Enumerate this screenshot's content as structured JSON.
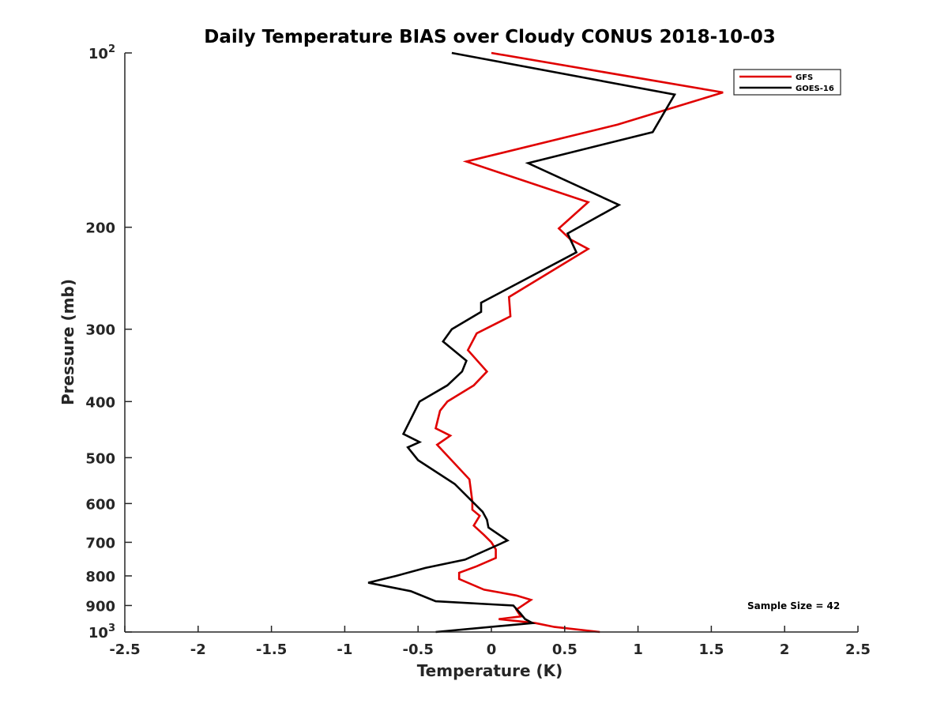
{
  "chart_data": {
    "type": "line",
    "title": "Daily Temperature BIAS over Cloudy CONUS 2018-10-03",
    "xlabel": "Temperature (K)",
    "ylabel": "Pressure (mb)",
    "xlim": [
      -2.5,
      2.5
    ],
    "ylim": [
      100,
      1000
    ],
    "y_scale": "log",
    "y_reversed": true,
    "x_ticks": [
      "-2.5",
      "-2",
      "-1.5",
      "-1",
      "-0.5",
      "0",
      "0.5",
      "1",
      "1.5",
      "2",
      "2.5"
    ],
    "y_ticks": [
      {
        "value": 100,
        "label": "10",
        "sup": "2"
      },
      {
        "value": 200,
        "label": "200",
        "sup": ""
      },
      {
        "value": 300,
        "label": "300",
        "sup": ""
      },
      {
        "value": 400,
        "label": "400",
        "sup": ""
      },
      {
        "value": 500,
        "label": "500",
        "sup": ""
      },
      {
        "value": 600,
        "label": "600",
        "sup": ""
      },
      {
        "value": 700,
        "label": "700",
        "sup": ""
      },
      {
        "value": 800,
        "label": "800",
        "sup": ""
      },
      {
        "value": 900,
        "label": "900",
        "sup": ""
      },
      {
        "value": 1000,
        "label": "10",
        "sup": "3"
      }
    ],
    "grid": false,
    "legend_position": "top-right",
    "annotation": "Sample Size = 42",
    "series": [
      {
        "name": "GFS",
        "color": "#e00000",
        "points": [
          [
            0.74,
            1000
          ],
          [
            0.43,
            980
          ],
          [
            0.3,
            965
          ],
          [
            0.05,
            950
          ],
          [
            0.2,
            940
          ],
          [
            0.17,
            915
          ],
          [
            0.27,
            880
          ],
          [
            0.17,
            865
          ],
          [
            -0.05,
            845
          ],
          [
            -0.22,
            810
          ],
          [
            -0.22,
            790
          ],
          [
            -0.1,
            770
          ],
          [
            0.03,
            745
          ],
          [
            0.03,
            720
          ],
          [
            0.0,
            700
          ],
          [
            -0.05,
            680
          ],
          [
            -0.12,
            655
          ],
          [
            -0.08,
            630
          ],
          [
            -0.13,
            615
          ],
          [
            -0.13,
            595
          ],
          [
            -0.15,
            545
          ],
          [
            -0.37,
            475
          ],
          [
            -0.28,
            458
          ],
          [
            -0.38,
            445
          ],
          [
            -0.35,
            415
          ],
          [
            -0.3,
            400
          ],
          [
            -0.12,
            375
          ],
          [
            -0.03,
            355
          ],
          [
            -0.16,
            326
          ],
          [
            -0.1,
            305
          ],
          [
            0.13,
            285
          ],
          [
            0.12,
            264
          ],
          [
            0.66,
            218
          ],
          [
            0.54,
            210
          ],
          [
            0.46,
            201
          ],
          [
            0.66,
            181
          ],
          [
            -0.17,
            154
          ],
          [
            0.86,
            133
          ],
          [
            1.58,
            117
          ],
          [
            0.0,
            100
          ]
        ]
      },
      {
        "name": "GOES-16",
        "color": "#000000",
        "points": [
          [
            -0.38,
            1000
          ],
          [
            0.28,
            965
          ],
          [
            0.23,
            950
          ],
          [
            0.2,
            930
          ],
          [
            0.15,
            900
          ],
          [
            -0.38,
            885
          ],
          [
            -0.55,
            850
          ],
          [
            -0.84,
            822
          ],
          [
            -0.65,
            800
          ],
          [
            -0.45,
            775
          ],
          [
            -0.18,
            750
          ],
          [
            0.03,
            710
          ],
          [
            0.11,
            695
          ],
          [
            -0.02,
            660
          ],
          [
            -0.03,
            640
          ],
          [
            -0.06,
            620
          ],
          [
            -0.25,
            555
          ],
          [
            -0.5,
            505
          ],
          [
            -0.57,
            480
          ],
          [
            -0.49,
            470
          ],
          [
            -0.6,
            455
          ],
          [
            -0.49,
            400
          ],
          [
            -0.3,
            375
          ],
          [
            -0.2,
            355
          ],
          [
            -0.17,
            340
          ],
          [
            -0.33,
            315
          ],
          [
            -0.27,
            300
          ],
          [
            -0.07,
            280
          ],
          [
            -0.07,
            270
          ],
          [
            0.58,
            221
          ],
          [
            0.52,
            205
          ],
          [
            0.87,
            183
          ],
          [
            0.25,
            155
          ],
          [
            1.1,
            137
          ],
          [
            1.25,
            118
          ],
          [
            -0.27,
            100
          ]
        ]
      }
    ]
  }
}
